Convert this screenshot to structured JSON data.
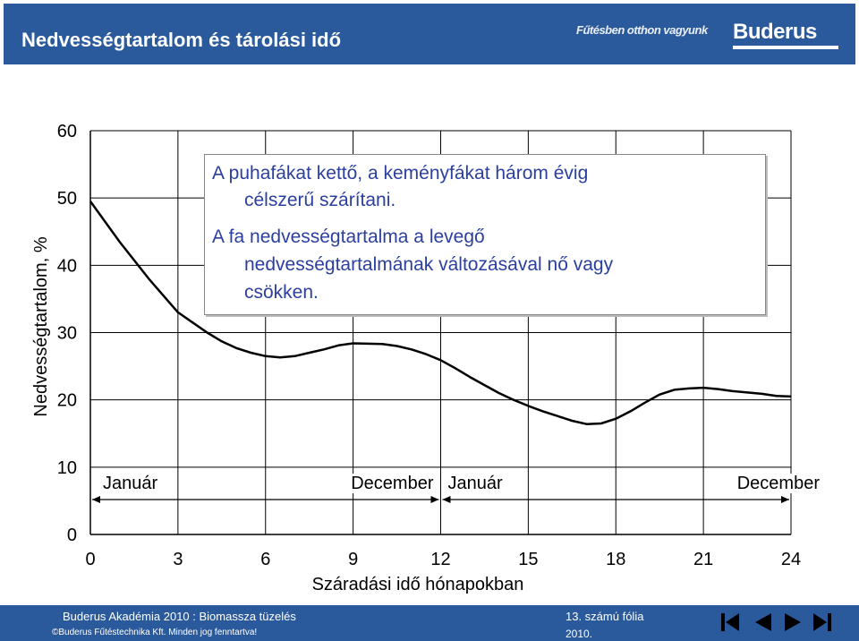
{
  "header": {
    "title": "Nedvességtartalom és tárolási idő",
    "slogan": "Fűtésben otthon vagyunk",
    "logo": "Buderus"
  },
  "annotation": {
    "line1": "A puhafákat kettő, a keményfákat három évig",
    "line2": "célszerű szárítani.",
    "line3": "A fa nedvességtartalma a levegő",
    "line4": "nedvességtartalmának változásával nő vagy",
    "line5": "csökken."
  },
  "chart_data": {
    "type": "line",
    "xlabel": "Száradási idő hónapokban",
    "ylabel": "Nedvességtartalom, %",
    "xlim": [
      0,
      24
    ],
    "ylim": [
      0,
      60
    ],
    "xticks": [
      "0",
      "3",
      "6",
      "9",
      "12",
      "15",
      "18",
      "21",
      "24"
    ],
    "yticks": [
      "0",
      "10",
      "20",
      "30",
      "40",
      "50",
      "60"
    ],
    "grid": true,
    "x": [
      0,
      1,
      2,
      2.5,
      3,
      3.5,
      4,
      4.5,
      5,
      5.5,
      6,
      6.5,
      7,
      7.5,
      8,
      8.5,
      9,
      10,
      10.5,
      11,
      11.5,
      12,
      12.5,
      13,
      13.5,
      14,
      14.5,
      15,
      15.5,
      16,
      16.5,
      17,
      17.5,
      18,
      18.5,
      19,
      19.5,
      20,
      20.5,
      21,
      21.5,
      22,
      22.5,
      23,
      23.5,
      24
    ],
    "y": [
      49.5,
      43.5,
      38,
      35.5,
      33,
      31.5,
      30,
      28.7,
      27.7,
      27,
      26.5,
      26.3,
      26.5,
      27,
      27.5,
      28.1,
      28.4,
      28.3,
      28,
      27.5,
      26.8,
      25.9,
      24.7,
      23.4,
      22.2,
      21,
      20,
      19.1,
      18.3,
      17.6,
      16.9,
      16.4,
      16.5,
      17.2,
      18.3,
      19.6,
      20.8,
      21.5,
      21.7,
      21.8,
      21.6,
      21.3,
      21.1,
      20.9,
      20.6,
      20.5
    ],
    "periods": [
      {
        "label": "Január",
        "from": 0,
        "to": 12
      },
      {
        "label": "December",
        "from": 0,
        "to": 12
      },
      {
        "label": "Január",
        "from": 12,
        "to": 24
      },
      {
        "label": "December",
        "from": 12,
        "to": 24
      }
    ]
  },
  "footer": {
    "left": "Buderus Akadémia 2010 : Biomassza tüzelés",
    "copyright": "©Buderus Fűtéstechnika Kft. Minden jog fenntartva!",
    "slide": "13. számú fólia",
    "year": "2010."
  },
  "nav": [
    "first-icon",
    "prev-icon",
    "next-icon",
    "last-icon"
  ]
}
